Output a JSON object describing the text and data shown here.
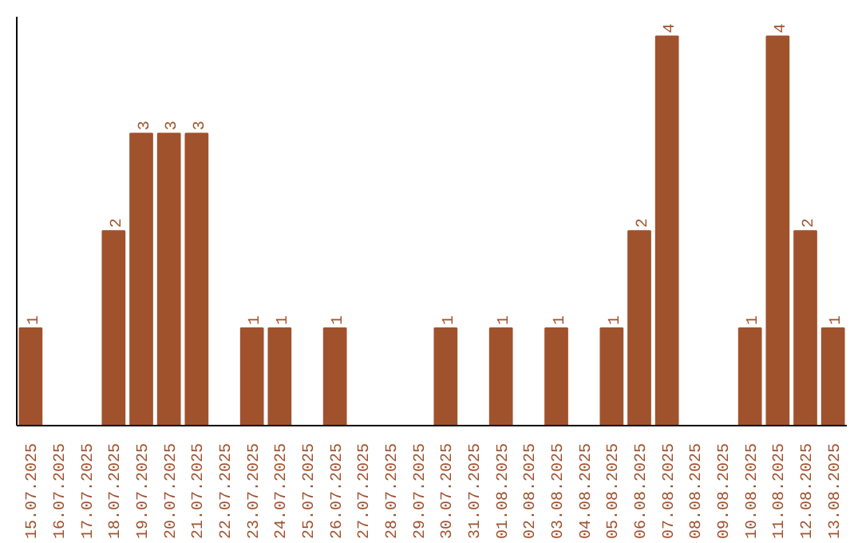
{
  "chart_data": {
    "type": "bar",
    "categories": [
      "15.07.2025",
      "16.07.2025",
      "17.07.2025",
      "18.07.2025",
      "19.07.2025",
      "20.07.2025",
      "21.07.2025",
      "22.07.2025",
      "23.07.2025",
      "24.07.2025",
      "25.07.2025",
      "26.07.2025",
      "27.07.2025",
      "28.07.2025",
      "29.07.2025",
      "30.07.2025",
      "31.07.2025",
      "01.08.2025",
      "02.08.2025",
      "03.08.2025",
      "04.08.2025",
      "05.08.2025",
      "06.08.2025",
      "07.08.2025",
      "08.08.2025",
      "09.08.2025",
      "10.08.2025",
      "11.08.2025",
      "12.08.2025",
      "13.08.2025"
    ],
    "values": [
      1,
      0,
      0,
      2,
      3,
      3,
      3,
      0,
      1,
      1,
      0,
      1,
      0,
      0,
      0,
      1,
      0,
      1,
      0,
      1,
      0,
      1,
      2,
      4,
      0,
      0,
      1,
      4,
      2,
      1
    ],
    "value_labels": [
      "1",
      null,
      null,
      "2",
      "3",
      "3",
      "3",
      null,
      "1",
      "1",
      null,
      "1",
      null,
      null,
      null,
      "1",
      null,
      "1",
      null,
      "1",
      null,
      "1",
      "2",
      "4",
      null,
      null,
      "1",
      "4",
      "2",
      "1"
    ],
    "color": "#a0522d",
    "ylim": [
      0,
      4.2
    ],
    "tick_labels": "x",
    "grid": false
  }
}
